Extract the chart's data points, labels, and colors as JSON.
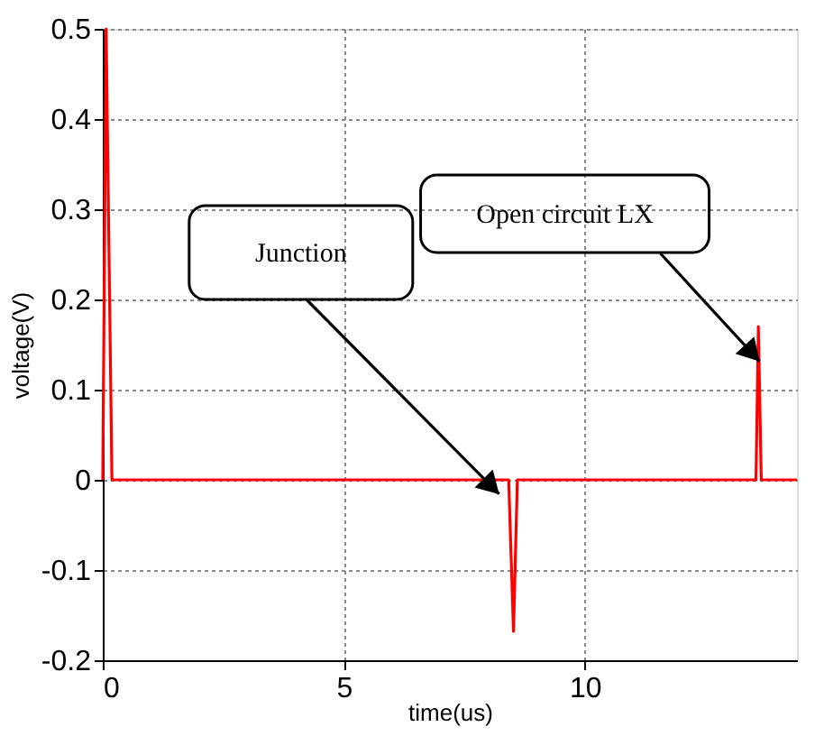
{
  "chart_data": {
    "type": "line",
    "xlabel": "time(us)",
    "ylabel": "voltage(V)",
    "x": [
      0,
      0.07,
      0.19,
      8.42,
      8.52,
      8.6,
      13.55,
      13.6,
      13.66,
      14.4
    ],
    "series": [
      {
        "color": "#ff0000",
        "values": [
          0,
          0.5,
          0,
          0,
          -0.168,
          0,
          0,
          0.17,
          0,
          0
        ]
      }
    ],
    "xlim": [
      0,
      14.4
    ],
    "xticks": [
      0,
      5,
      10
    ],
    "ylim": [
      -0.2,
      0.5
    ],
    "yticks": [
      -0.2,
      -0.1,
      0,
      0.1,
      0.2,
      0.3,
      0.4,
      0.5
    ],
    "grid": true,
    "legend": false,
    "marker": "none",
    "line_style": "solid",
    "annotations": [
      {
        "text": "Junction",
        "x": 8.3,
        "y": -0.02
      },
      {
        "text": "Open circuit LX",
        "x": 13.7,
        "y": 0.127
      }
    ]
  }
}
